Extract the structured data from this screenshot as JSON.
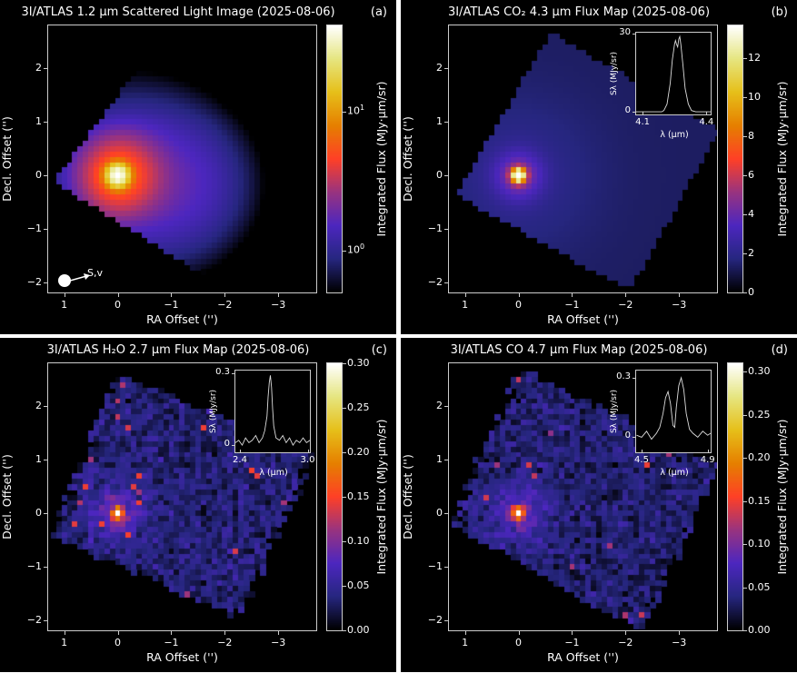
{
  "colormap": "CMRmap",
  "chart_data": [
    {
      "type": "heatmap",
      "panel": "(a)",
      "title": "3I/ATLAS 1.2 μm Scattered Light Image (2025-08-06)",
      "xlabel": "RA Offset ('')",
      "ylabel": "Decl. Offset ('')",
      "xlim": [
        1.3,
        -3.71
      ],
      "ylim": [
        -2.18,
        2.8
      ],
      "xticks": [
        1,
        0,
        -1,
        -2,
        -3
      ],
      "yticks": [
        -2,
        -1,
        0,
        1,
        2
      ],
      "colorbar": {
        "label": "Integrated Flux (MJy·μm/sr)",
        "scale": "log",
        "range": [
          0.5,
          42
        ],
        "ticks": [
          {
            "base": "10",
            "exp": "0",
            "value": 1
          },
          {
            "base": "10",
            "exp": "1",
            "value": 10
          }
        ]
      },
      "peak": [
        0,
        0
      ],
      "annotation": "S,v"
    },
    {
      "type": "heatmap",
      "panel": "(b)",
      "title": "3I/ATLAS CO₂ 4.3 μm Flux Map (2025-08-06)",
      "xlabel": "RA Offset ('')",
      "ylabel": "Decl. Offset ('')",
      "xlim": [
        1.3,
        -3.71
      ],
      "ylim": [
        -2.18,
        2.8
      ],
      "xticks": [
        1,
        0,
        -1,
        -2,
        -3
      ],
      "yticks": [
        -2,
        -1,
        0,
        1,
        2
      ],
      "colorbar": {
        "label": "Integrated Flux (MJy·μm/sr)",
        "scale": "linear",
        "range": [
          0,
          13.7
        ],
        "ticks": [
          0,
          2,
          4,
          6,
          8,
          10,
          12
        ]
      },
      "peak": [
        0,
        0
      ],
      "inset": {
        "xlabel": "λ (μm)",
        "ylabel": "Sλ (MJy/sr)",
        "xlim": [
          4.07,
          4.42
        ],
        "ylim": [
          -1,
          30.5
        ],
        "xticks": [
          "4.1",
          "4.4"
        ],
        "xtickvals": [
          4.1,
          4.4
        ],
        "yticks": [
          "0",
          "30"
        ],
        "ytickvals": [
          0,
          30
        ],
        "x": [
          4.07,
          4.1,
          4.13,
          4.16,
          4.19,
          4.2,
          4.215,
          4.23,
          4.24,
          4.25,
          4.255,
          4.26,
          4.265,
          4.27,
          4.275,
          4.28,
          4.29,
          4.3,
          4.315,
          4.33,
          4.35,
          4.38,
          4.42
        ],
        "y": [
          0,
          0,
          0,
          0,
          0,
          0.5,
          3,
          11,
          20,
          26,
          27.5,
          26,
          25,
          28,
          29,
          26,
          18,
          9,
          3,
          0.5,
          0,
          0,
          0
        ]
      }
    },
    {
      "type": "heatmap",
      "panel": "(c)",
      "title": "3I/ATLAS H₂O 2.7 μm Flux Map (2025-08-06)",
      "xlabel": "RA Offset ('')",
      "ylabel": "Decl. Offset ('')",
      "xlim": [
        1.3,
        -3.71
      ],
      "ylim": [
        -2.18,
        2.8
      ],
      "xticks": [
        1,
        0,
        -1,
        -2,
        -3
      ],
      "yticks": [
        -2,
        -1,
        0,
        1,
        2
      ],
      "colorbar": {
        "label": "Integrated Flux (MJy·μm/sr)",
        "scale": "linear",
        "range": [
          0,
          0.3
        ],
        "ticks": [
          "0.00",
          "0.05",
          "0.10",
          "0.15",
          "0.20",
          "0.25",
          "0.30"
        ]
      },
      "peak": [
        0,
        0
      ],
      "inset": {
        "xlabel": "λ (μm)",
        "ylabel": "Sλ (MJy/sr)",
        "xlim": [
          2.36,
          3.02
        ],
        "ylim": [
          -0.03,
          0.31
        ],
        "xticks": [
          "2.4",
          "3.0"
        ],
        "xtickvals": [
          2.4,
          3.0
        ],
        "yticks": [
          "0",
          "0.3"
        ],
        "ytickvals": [
          0,
          0.3
        ],
        "x": [
          2.36,
          2.39,
          2.42,
          2.45,
          2.48,
          2.51,
          2.54,
          2.57,
          2.6,
          2.62,
          2.64,
          2.65,
          2.66,
          2.67,
          2.68,
          2.69,
          2.7,
          2.72,
          2.75,
          2.78,
          2.81,
          2.84,
          2.87,
          2.9,
          2.93,
          2.96,
          2.99,
          3.02
        ],
        "y": [
          0.01,
          0.02,
          0,
          0.03,
          0.01,
          0.02,
          0.04,
          0.01,
          0.03,
          0.06,
          0.12,
          0.2,
          0.26,
          0.29,
          0.24,
          0.15,
          0.08,
          0.03,
          0.02,
          0.04,
          0.01,
          0.03,
          0,
          0.02,
          0.01,
          0.03,
          0.01,
          0.02
        ]
      }
    },
    {
      "type": "heatmap",
      "panel": "(d)",
      "title": "3I/ATLAS CO 4.7 μm Flux Map (2025-08-06)",
      "xlabel": "RA Offset ('')",
      "ylabel": "Decl. Offset ('')",
      "xlim": [
        1.3,
        -3.71
      ],
      "ylim": [
        -2.18,
        2.8
      ],
      "xticks": [
        1,
        0,
        -1,
        -2,
        -3
      ],
      "yticks": [
        -2,
        -1,
        0,
        1,
        2
      ],
      "colorbar": {
        "label": "Integrated Flux (MJy·μm/sr)",
        "scale": "linear",
        "range": [
          0,
          0.31
        ],
        "ticks": [
          "0.00",
          "0.05",
          "0.10",
          "0.15",
          "0.20",
          "0.25",
          "0.30"
        ]
      },
      "peak": [
        0,
        0
      ],
      "inset": {
        "xlabel": "λ (μm)",
        "ylabel": "Sλ (MJy/sr)",
        "xlim": [
          4.467,
          4.918
        ],
        "ylim": [
          -0.076,
          0.336
        ],
        "xticks": [
          "4.5",
          "4.9"
        ],
        "xtickvals": [
          4.5,
          4.9
        ],
        "yticks": [
          "0",
          "0.3"
        ],
        "ytickvals": [
          0,
          0.3
        ],
        "x": [
          4.47,
          4.5,
          4.53,
          4.56,
          4.59,
          4.61,
          4.63,
          4.645,
          4.66,
          4.675,
          4.69,
          4.7,
          4.71,
          4.725,
          4.74,
          4.755,
          4.77,
          4.79,
          4.81,
          4.84,
          4.87,
          4.9,
          4.918
        ],
        "y": [
          0.01,
          0.0,
          0.03,
          -0.01,
          0.02,
          0.05,
          0.12,
          0.2,
          0.23,
          0.17,
          0.06,
          0.05,
          0.15,
          0.26,
          0.3,
          0.24,
          0.12,
          0.04,
          0.02,
          0.0,
          0.03,
          0.01,
          0.02
        ]
      }
    }
  ]
}
